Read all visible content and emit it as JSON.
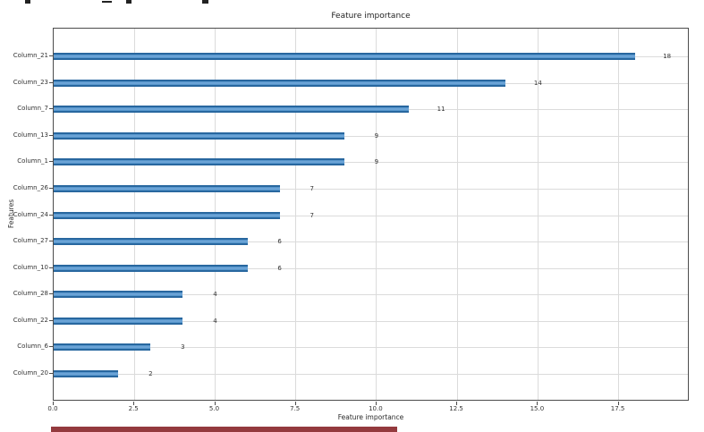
{
  "chart_data": {
    "type": "bar",
    "orientation": "horizontal",
    "title": "Feature importance",
    "xlabel": "Feature importance",
    "ylabel": "Features",
    "categories": [
      "Column_21",
      "Column_23",
      "Column_7",
      "Column_13",
      "Column_1",
      "Column_26",
      "Column_24",
      "Column_27",
      "Column_10",
      "Column_28",
      "Column_22",
      "Column_6",
      "Column_20"
    ],
    "values": [
      18,
      14,
      11,
      9,
      9,
      7,
      7,
      6,
      6,
      4,
      4,
      3,
      2
    ],
    "value_labels": [
      "18",
      "14",
      "11",
      "9",
      "9",
      "7",
      "7",
      "6",
      "6",
      "4",
      "4",
      "3",
      "2"
    ],
    "xticks": [
      "0.0",
      "2.5",
      "5.0",
      "7.5",
      "10.0",
      "12.5",
      "15.0",
      "17.5"
    ],
    "xtick_values": [
      0,
      2.5,
      5,
      7.5,
      10,
      12.5,
      15,
      17.5
    ],
    "xlim": [
      0,
      19.7
    ],
    "grid": true,
    "legend": "none"
  },
  "colors": {
    "bar": "#2d76b5",
    "grid": "#dbdbdb",
    "frame": "#4c4c4c",
    "text": "#333333",
    "maroon_strip": "#943a3e"
  }
}
